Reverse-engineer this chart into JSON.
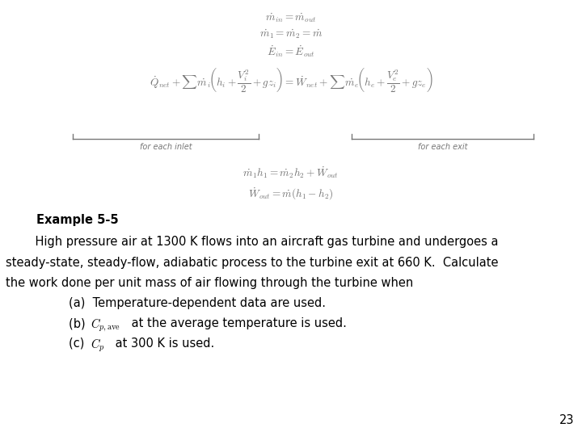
{
  "bg_color": "#ffffff",
  "eq1": "$\\dot{m}_{in} = \\dot{m}_{out}$",
  "eq2": "$\\dot{m}_1 = \\dot{m}_2 = \\dot{m}$",
  "eq3": "$\\dot{E}_{in} = \\dot{E}_{out}$",
  "eq4": "$\\dot{Q}_{net} + \\sum \\dot{m}_i\\!\\left(h_i + \\dfrac{V_i^2}{2} + gz_i\\right) = \\dot{W}_{net} + \\sum \\dot{m}_e\\!\\left(h_e + \\dfrac{V_e^2}{2} + gz_e\\right)$",
  "label_inlet": "for each inlet",
  "label_exit": "for each exit",
  "eq5": "$\\dot{m}_1 h_1 = \\dot{m}_2 h_2 + \\dot{W}_{out}$",
  "eq6": "$\\dot{W}_{out} = \\dot{m}(h_1 - h_2)$",
  "example_title": "Example 5-5",
  "para1": "    High pressure air at 1300 K flows into an aircraft gas turbine and undergoes a",
  "para2": "steady-state, steady-flow, adiabatic process to the turbine exit at 660 K.  Calculate",
  "para3": "the work done per unit mass of air flowing through the turbine when",
  "item_a": "(a)  Temperature-dependent data are used.",
  "item_b_pre": "(b)  ",
  "item_b_math": "$C_{p,\\mathrm{ave}}$",
  "item_b_post": " at the average temperature is used.",
  "item_c_pre": "(c)  ",
  "item_c_math": "$C_p$",
  "item_c_post": " at 300 K is used.",
  "page_num": "23",
  "text_color": "#000000",
  "gray_color": "#777777",
  "eq_fontsize": 9.5,
  "text_fontsize": 10.5
}
